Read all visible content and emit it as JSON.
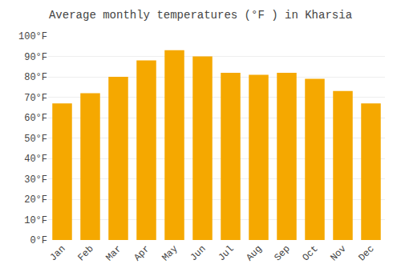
{
  "chart_data": {
    "type": "bar",
    "title": "Average monthly temperatures (°F ) in Kharsia",
    "categories": [
      "Jan",
      "Feb",
      "Mar",
      "Apr",
      "May",
      "Jun",
      "Jul",
      "Aug",
      "Sep",
      "Oct",
      "Nov",
      "Dec"
    ],
    "values": [
      67,
      72,
      80,
      88,
      93,
      90,
      82,
      81,
      82,
      79,
      73,
      67
    ],
    "color": "#F5A800",
    "ylim": [
      0,
      100
    ],
    "yticks": [
      {
        "value": 0,
        "label": "0°F"
      },
      {
        "value": 10,
        "label": "10°F"
      },
      {
        "value": 20,
        "label": "20°F"
      },
      {
        "value": 30,
        "label": "30°F"
      },
      {
        "value": 40,
        "label": "40°F"
      },
      {
        "value": 50,
        "label": "50°F"
      },
      {
        "value": 60,
        "label": "60°F"
      },
      {
        "value": 70,
        "label": "70°F"
      },
      {
        "value": 80,
        "label": "80°F"
      },
      {
        "value": 90,
        "label": "90°F"
      },
      {
        "value": 100,
        "label": "100°F"
      }
    ],
    "grid": true
  }
}
